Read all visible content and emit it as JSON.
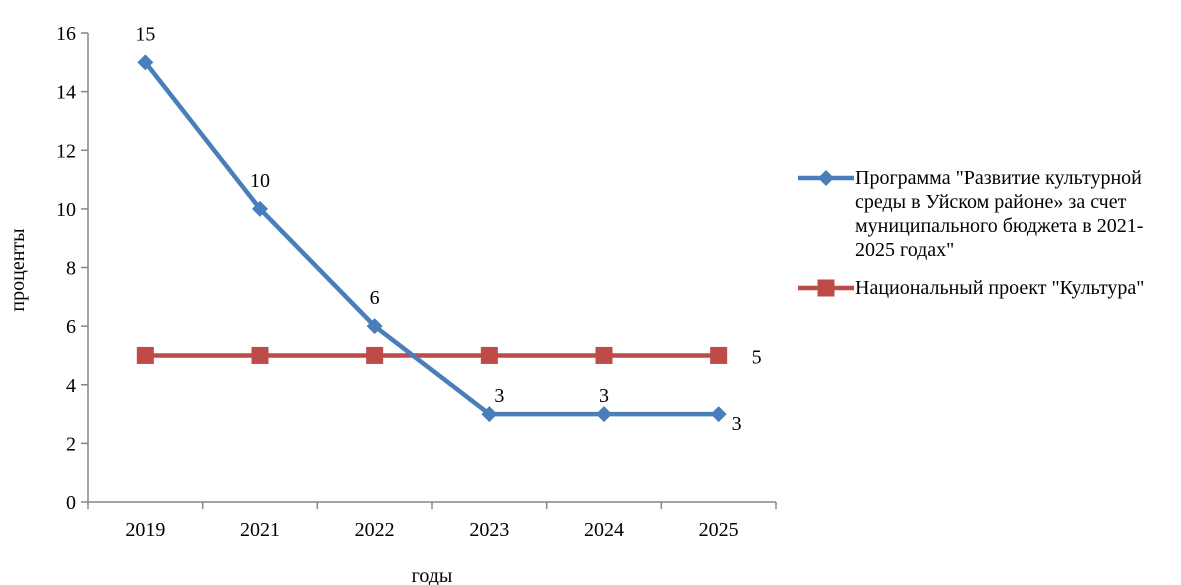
{
  "chart_data": {
    "type": "line",
    "categories": [
      "2019",
      "2021",
      "2022",
      "2023",
      "2024",
      "2025"
    ],
    "series": [
      {
        "name": "Программа \"Развитие культурной среды в Уйском районе» за счет муниципального бюджета в 2021-2025 годах\"",
        "values": [
          15,
          10,
          6,
          3,
          3,
          3
        ],
        "color": "#4a7ebb",
        "marker": "diamond",
        "data_labels": [
          "15",
          "10",
          "6",
          "3",
          "3",
          "3"
        ]
      },
      {
        "name": "Национальный проект \"Культура\"",
        "values": [
          5,
          5,
          5,
          5,
          5,
          5
        ],
        "color": "#be4b48",
        "marker": "square",
        "data_labels": [
          "",
          "",
          "",
          "",
          "",
          "5"
        ]
      }
    ],
    "xlabel": "годы",
    "ylabel": "проценты",
    "ylim": [
      0,
      16
    ],
    "yticks": [
      "0",
      "2",
      "4",
      "6",
      "8",
      "10",
      "12",
      "14",
      "16"
    ],
    "grid": false,
    "legend": "right"
  }
}
